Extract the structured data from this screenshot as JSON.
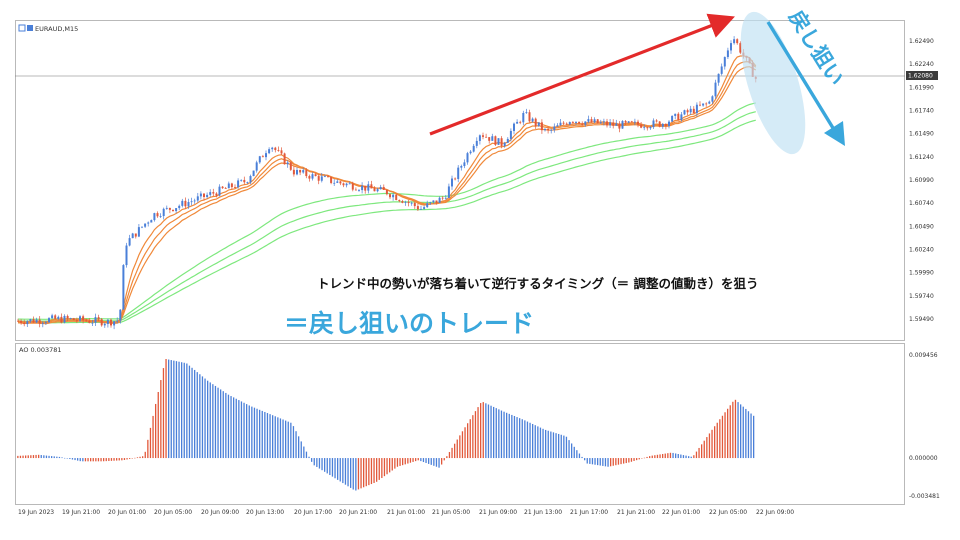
{
  "colors": {
    "bull": "#4a7fd8",
    "bear": "#e2583a",
    "ma_orange": "#f0893a",
    "ma_green": "#7ee87e",
    "ao_up": "#e2583a",
    "ao_down": "#4a7fd8",
    "accent_blue": "#3aa7dc",
    "accent_red": "#e32a2a"
  },
  "header": {
    "symbol": "EURAUD,M15",
    "icons": [
      "chart-mode-icon",
      "indicator-icon"
    ]
  },
  "price_axis": {
    "labels": [
      "1.62490",
      "1.62240",
      "1.61990",
      "1.61740",
      "1.61490",
      "1.61240",
      "1.60990",
      "1.60740",
      "1.60490",
      "1.60240",
      "1.59990",
      "1.59740",
      "1.59490"
    ],
    "current_price": "1.62080"
  },
  "ao_panel": {
    "label": "AO 0.003781",
    "axis_labels": [
      "0.009456",
      "0.000000",
      "-0.003481"
    ]
  },
  "time_axis": {
    "labels": [
      "19 Jun 2023",
      "19 Jun 21:00",
      "20 Jun 01:00",
      "20 Jun 05:00",
      "20 Jun 09:00",
      "20 Jun 13:00",
      "20 Jun 17:00",
      "20 Jun 21:00",
      "21 Jun 01:00",
      "21 Jun 05:00",
      "21 Jun 09:00",
      "21 Jun 13:00",
      "21 Jun 17:00",
      "21 Jun 21:00",
      "22 Jun 01:00",
      "22 Jun 05:00",
      "22 Jun 09:00"
    ]
  },
  "annotations": {
    "caption_1": "トレンド中の勢いが落ち着いて逆行するタイミング（＝ 調整の値動き）を狙う",
    "caption_2": "＝戻し狙いのトレード",
    "vertical_label": "戻し狙い"
  },
  "chart_data": [
    {
      "type": "candlestick",
      "title": "",
      "symbol": "EURAUD",
      "timeframe": "M15",
      "ylim": [
        1.5935,
        1.6264
      ],
      "x_range": [
        "19 Jun 2023",
        "22 Jun 09:00"
      ],
      "close_path": [
        {
          "x": "19 Jun 2023",
          "y": 1.5947
        },
        {
          "x": "19 Jun 21:00",
          "y": 1.5949
        },
        {
          "x": "20 Jun 01:00",
          "y": 1.5946
        },
        {
          "x": "20 Jun 02:00",
          "y": 1.5948
        },
        {
          "x": "20 Jun 02:30",
          "y": 1.603
        },
        {
          "x": "20 Jun 05:00",
          "y": 1.6062
        },
        {
          "x": "20 Jun 09:00",
          "y": 1.608
        },
        {
          "x": "20 Jun 13:00",
          "y": 1.6098
        },
        {
          "x": "20 Jun 15:00",
          "y": 1.6138
        },
        {
          "x": "20 Jun 17:00",
          "y": 1.6108
        },
        {
          "x": "20 Jun 21:00",
          "y": 1.6096
        },
        {
          "x": "21 Jun 01:00",
          "y": 1.6086
        },
        {
          "x": "21 Jun 04:00",
          "y": 1.6068
        },
        {
          "x": "21 Jun 06:00",
          "y": 1.608
        },
        {
          "x": "21 Jun 09:00",
          "y": 1.615
        },
        {
          "x": "21 Jun 11:00",
          "y": 1.6138
        },
        {
          "x": "21 Jun 13:00",
          "y": 1.617
        },
        {
          "x": "21 Jun 15:00",
          "y": 1.615
        },
        {
          "x": "21 Jun 17:00",
          "y": 1.6164
        },
        {
          "x": "21 Jun 21:00",
          "y": 1.6158
        },
        {
          "x": "22 Jun 01:00",
          "y": 1.616
        },
        {
          "x": "22 Jun 05:00",
          "y": 1.6182
        },
        {
          "x": "22 Jun 07:00",
          "y": 1.6255
        },
        {
          "x": "22 Jun 09:00",
          "y": 1.6208
        }
      ]
    },
    {
      "type": "bar",
      "title": "AO 0.003781",
      "series_name": "AO",
      "ylim": [
        -0.003481,
        0.009456
      ],
      "x_range": [
        "19 Jun 2023",
        "22 Jun 09:00"
      ],
      "values": [
        0.0002,
        0.0003,
        0.0001,
        -0.0003,
        -0.0003,
        -0.0002,
        0.0002,
        0.0091,
        0.0087,
        0.0071,
        0.0058,
        0.0048,
        0.004,
        0.0032,
        -0.0006,
        -0.0018,
        -0.003,
        -0.0022,
        -0.0008,
        -0.0002,
        -0.0009,
        0.0022,
        0.0052,
        0.0043,
        0.0035,
        0.0026,
        0.002,
        -0.0005,
        -0.0008,
        -0.0004,
        0.0002,
        0.0005,
        0.0001,
        0.0028,
        0.0054,
        0.0037
      ]
    }
  ]
}
